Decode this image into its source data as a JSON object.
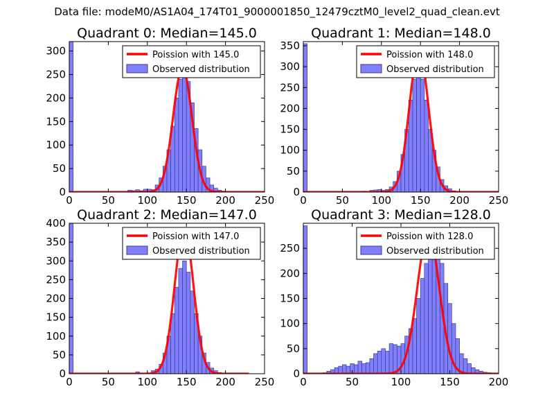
{
  "figure_title": "Data file: modeM0/AS1A04_174T01_9000001850_12479cztM0_level2_quad_clean.evt",
  "colors": {
    "hist_fill": "#8080ff",
    "hist_edge": "#3a3a8a",
    "poisson_line": "#ff0000",
    "axis": "#000000"
  },
  "chart_data": [
    {
      "type": "bar",
      "title": "Quadrant 0: Median=145.0",
      "xlim": [
        0,
        250
      ],
      "ylim": [
        0,
        320
      ],
      "xticks": [
        0,
        50,
        100,
        150,
        200,
        250
      ],
      "yticks": [
        0,
        50,
        100,
        150,
        200,
        250,
        300
      ],
      "legend_position": "top-right",
      "legend": [
        "Poission with 145.0",
        "Observed distribution"
      ],
      "bin_width": 5,
      "bins": [
        [
          0,
          320
        ],
        [
          75,
          4
        ],
        [
          80,
          3
        ],
        [
          85,
          5
        ],
        [
          90,
          3
        ],
        [
          95,
          6
        ],
        [
          100,
          6
        ],
        [
          105,
          5
        ],
        [
          110,
          15
        ],
        [
          115,
          30
        ],
        [
          120,
          55
        ],
        [
          125,
          90
        ],
        [
          130,
          140
        ],
        [
          135,
          200
        ],
        [
          140,
          240
        ],
        [
          145,
          255
        ],
        [
          150,
          235
        ],
        [
          155,
          190
        ],
        [
          160,
          135
        ],
        [
          165,
          90
        ],
        [
          170,
          55
        ],
        [
          175,
          30
        ],
        [
          180,
          15
        ],
        [
          185,
          8
        ],
        [
          190,
          4
        ],
        [
          195,
          2
        ]
      ],
      "poisson": {
        "mean": 145.0,
        "peak": 265,
        "x_range": [
          0,
          250
        ]
      }
    },
    {
      "type": "bar",
      "title": "Quadrant 1: Median=148.0",
      "xlim": [
        0,
        250
      ],
      "ylim": [
        0,
        360
      ],
      "xticks": [
        0,
        50,
        100,
        150,
        200,
        250
      ],
      "yticks": [
        0,
        50,
        100,
        150,
        200,
        250,
        300,
        350
      ],
      "legend_position": "top-right",
      "legend": [
        "Poission with 148.0",
        "Observed distribution"
      ],
      "bin_width": 5,
      "bins": [
        [
          0,
          355
        ],
        [
          75,
          2
        ],
        [
          85,
          4
        ],
        [
          90,
          5
        ],
        [
          95,
          6
        ],
        [
          100,
          4
        ],
        [
          105,
          6
        ],
        [
          110,
          12
        ],
        [
          115,
          25
        ],
        [
          120,
          50
        ],
        [
          125,
          90
        ],
        [
          130,
          150
        ],
        [
          135,
          220
        ],
        [
          140,
          270
        ],
        [
          145,
          290
        ],
        [
          150,
          270
        ],
        [
          155,
          220
        ],
        [
          160,
          150
        ],
        [
          165,
          100
        ],
        [
          170,
          60
        ],
        [
          175,
          30
        ],
        [
          180,
          15
        ],
        [
          185,
          8
        ],
        [
          190,
          3
        ]
      ],
      "poisson": {
        "mean": 148.0,
        "peak": 340,
        "x_range": [
          0,
          250
        ]
      }
    },
    {
      "type": "bar",
      "title": "Quadrant 2: Median=147.0",
      "xlim": [
        0,
        250
      ],
      "ylim": [
        0,
        400
      ],
      "xticks": [
        0,
        50,
        100,
        150,
        200,
        250
      ],
      "yticks": [
        0,
        50,
        100,
        150,
        200,
        250,
        300,
        350,
        400
      ],
      "legend_position": "top-right",
      "legend": [
        "Poission with 147.0",
        "Observed distribution"
      ],
      "bin_width": 5,
      "bins": [
        [
          0,
          400
        ],
        [
          85,
          5
        ],
        [
          105,
          8
        ],
        [
          110,
          12
        ],
        [
          115,
          25
        ],
        [
          120,
          55
        ],
        [
          125,
          100
        ],
        [
          130,
          160
        ],
        [
          135,
          230
        ],
        [
          140,
          280
        ],
        [
          145,
          300
        ],
        [
          150,
          270
        ],
        [
          155,
          220
        ],
        [
          160,
          160
        ],
        [
          165,
          100
        ],
        [
          170,
          55
        ],
        [
          175,
          30
        ],
        [
          180,
          15
        ],
        [
          185,
          8
        ],
        [
          190,
          3
        ]
      ],
      "poisson": {
        "mean": 147.0,
        "peak": 385,
        "x_range": [
          0,
          230
        ]
      }
    },
    {
      "type": "bar",
      "title": "Quadrant 3: Median=128.0",
      "xlim": [
        0,
        200
      ],
      "ylim": [
        0,
        300
      ],
      "xticks": [
        0,
        50,
        100,
        150,
        200
      ],
      "yticks": [
        0,
        50,
        100,
        150,
        200,
        250
      ],
      "legend_position": "top-right",
      "legend": [
        "Poission with 128.0",
        "Observed distribution"
      ],
      "bin_width": 4,
      "bins": [
        [
          0,
          295
        ],
        [
          20,
          2
        ],
        [
          24,
          5
        ],
        [
          28,
          8
        ],
        [
          32,
          12
        ],
        [
          36,
          15
        ],
        [
          40,
          18
        ],
        [
          44,
          15
        ],
        [
          48,
          20
        ],
        [
          52,
          18
        ],
        [
          56,
          25
        ],
        [
          60,
          20
        ],
        [
          64,
          22
        ],
        [
          68,
          30
        ],
        [
          72,
          40
        ],
        [
          76,
          45
        ],
        [
          80,
          50
        ],
        [
          84,
          45
        ],
        [
          88,
          60
        ],
        [
          92,
          58
        ],
        [
          96,
          55
        ],
        [
          100,
          60
        ],
        [
          104,
          75
        ],
        [
          108,
          90
        ],
        [
          112,
          110
        ],
        [
          116,
          150
        ],
        [
          120,
          190
        ],
        [
          124,
          220
        ],
        [
          128,
          250
        ],
        [
          132,
          260
        ],
        [
          136,
          250
        ],
        [
          140,
          220
        ],
        [
          144,
          180
        ],
        [
          148,
          140
        ],
        [
          152,
          100
        ],
        [
          156,
          70
        ],
        [
          160,
          40
        ],
        [
          164,
          30
        ],
        [
          168,
          20
        ],
        [
          172,
          12
        ],
        [
          176,
          8
        ],
        [
          180,
          5
        ],
        [
          184,
          3
        ],
        [
          188,
          2
        ]
      ],
      "poisson": {
        "mean": 128.0,
        "peak": 282,
        "x_range": [
          0,
          200
        ]
      }
    }
  ]
}
